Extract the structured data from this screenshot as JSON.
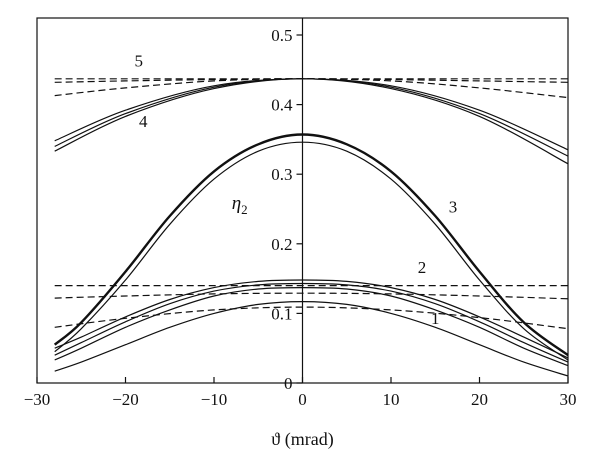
{
  "chart_data": {
    "type": "line",
    "title": "",
    "xlabel": "ϑ (mrad)",
    "ylabel": "",
    "annotation": "η",
    "annotation_subscript": "2",
    "xlim": [
      -30,
      30
    ],
    "ylim": [
      0,
      0.5
    ],
    "x_ticks": [
      -30,
      -20,
      -10,
      0,
      10,
      20,
      30
    ],
    "x_tick_labels": [
      "−30",
      "−20",
      "−10",
      "0",
      "10",
      "20",
      "30"
    ],
    "y_ticks": [
      0,
      0.1,
      0.2,
      0.3,
      0.4,
      0.5
    ],
    "y_tick_labels": [
      "0",
      "0.1",
      "0.2",
      "0.3",
      "0.4",
      "0.5"
    ],
    "grid": false,
    "legend": "none",
    "curve_labels": [
      {
        "text": "1",
        "x": 15,
        "y": 0.085
      },
      {
        "text": "2",
        "x": 13.5,
        "y": 0.158
      },
      {
        "text": "3",
        "x": 17,
        "y": 0.245
      },
      {
        "text": "4",
        "x": -18,
        "y": 0.368
      },
      {
        "text": "5",
        "x": -18.5,
        "y": 0.455
      }
    ],
    "annotation_pos": {
      "x": -8,
      "y": 0.25
    },
    "series": [
      {
        "group": "5",
        "style": "dashed",
        "width": 1.2,
        "x": [
          -28,
          -20,
          -10,
          0,
          10,
          20,
          30
        ],
        "y": [
          0.437,
          0.437,
          0.437,
          0.437,
          0.437,
          0.437,
          0.437
        ]
      },
      {
        "group": "5",
        "style": "dashed",
        "width": 1.2,
        "x": [
          -28,
          -20,
          -10,
          0,
          10,
          20,
          30
        ],
        "y": [
          0.432,
          0.434,
          0.436,
          0.437,
          0.436,
          0.434,
          0.432
        ]
      },
      {
        "group": "5",
        "style": "dashed",
        "width": 1.2,
        "x": [
          -28,
          -20,
          -10,
          0,
          10,
          20,
          30
        ],
        "y": [
          0.413,
          0.424,
          0.434,
          0.437,
          0.434,
          0.424,
          0.41
        ]
      },
      {
        "group": "4",
        "style": "solid",
        "width": 1.2,
        "x": [
          -28,
          -20,
          -10,
          0,
          10,
          20,
          30
        ],
        "y": [
          0.348,
          0.392,
          0.427,
          0.437,
          0.427,
          0.392,
          0.335
        ]
      },
      {
        "group": "4",
        "style": "solid",
        "width": 1.2,
        "x": [
          -28,
          -20,
          -10,
          0,
          10,
          20,
          30
        ],
        "y": [
          0.34,
          0.387,
          0.425,
          0.437,
          0.425,
          0.387,
          0.326
        ]
      },
      {
        "group": "4",
        "style": "solid",
        "width": 1.2,
        "x": [
          -28,
          -20,
          -10,
          0,
          10,
          20,
          30
        ],
        "y": [
          0.333,
          0.383,
          0.423,
          0.437,
          0.423,
          0.383,
          0.315
        ]
      },
      {
        "group": "3",
        "style": "solid",
        "width": 2.4,
        "x": [
          -28,
          -25,
          -20,
          -15,
          -10,
          -5,
          0,
          5,
          10,
          15,
          20,
          25,
          30
        ],
        "y": [
          0.055,
          0.087,
          0.16,
          0.24,
          0.304,
          0.343,
          0.357,
          0.343,
          0.304,
          0.24,
          0.16,
          0.087,
          0.04
        ]
      },
      {
        "group": "3",
        "style": "solid",
        "width": 1.2,
        "x": [
          -28,
          -25,
          -20,
          -15,
          -10,
          -5,
          0,
          5,
          10,
          15,
          20,
          25,
          30
        ],
        "y": [
          0.045,
          0.078,
          0.148,
          0.228,
          0.293,
          0.333,
          0.346,
          0.333,
          0.293,
          0.228,
          0.148,
          0.078,
          0.033
        ]
      },
      {
        "group": "2",
        "style": "dashed",
        "width": 1.2,
        "x": [
          -28,
          -20,
          -10,
          0,
          10,
          20,
          30
        ],
        "y": [
          0.14,
          0.14,
          0.14,
          0.14,
          0.14,
          0.14,
          0.14
        ]
      },
      {
        "group": "2",
        "style": "dashed",
        "width": 1.2,
        "x": [
          -28,
          -20,
          -10,
          0,
          10,
          20,
          30
        ],
        "y": [
          0.122,
          0.125,
          0.128,
          0.129,
          0.128,
          0.125,
          0.121
        ]
      },
      {
        "group": "1",
        "style": "dashed",
        "width": 1.2,
        "x": [
          -28,
          -20,
          -10,
          0,
          10,
          20,
          30
        ],
        "y": [
          0.08,
          0.093,
          0.105,
          0.109,
          0.105,
          0.094,
          0.078
        ]
      },
      {
        "group": "2",
        "style": "solid",
        "width": 1.2,
        "x": [
          -28,
          -25,
          -20,
          -15,
          -10,
          -5,
          0,
          5,
          10,
          15,
          20,
          25,
          30
        ],
        "y": [
          0.05,
          0.066,
          0.095,
          0.12,
          0.137,
          0.146,
          0.148,
          0.146,
          0.137,
          0.12,
          0.095,
          0.066,
          0.036
        ]
      },
      {
        "group": "2",
        "style": "solid",
        "width": 1.2,
        "x": [
          -28,
          -25,
          -20,
          -15,
          -10,
          -5,
          0,
          5,
          10,
          15,
          20,
          25,
          30
        ],
        "y": [
          0.04,
          0.058,
          0.088,
          0.114,
          0.132,
          0.141,
          0.143,
          0.141,
          0.132,
          0.114,
          0.088,
          0.058,
          0.03
        ]
      },
      {
        "group": "1",
        "style": "solid",
        "width": 1.2,
        "x": [
          -28,
          -25,
          -20,
          -15,
          -10,
          -5,
          0,
          5,
          10,
          15,
          20,
          25,
          30
        ],
        "y": [
          0.033,
          0.05,
          0.08,
          0.105,
          0.125,
          0.135,
          0.137,
          0.135,
          0.125,
          0.105,
          0.08,
          0.05,
          0.025
        ]
      },
      {
        "group": "1",
        "style": "solid",
        "width": 1.2,
        "x": [
          -28,
          -25,
          -20,
          -15,
          -10,
          -5,
          0,
          5,
          10,
          15,
          20,
          25,
          30
        ],
        "y": [
          0.017,
          0.03,
          0.055,
          0.08,
          0.1,
          0.113,
          0.117,
          0.113,
          0.1,
          0.08,
          0.055,
          0.03,
          0.01
        ]
      }
    ]
  }
}
